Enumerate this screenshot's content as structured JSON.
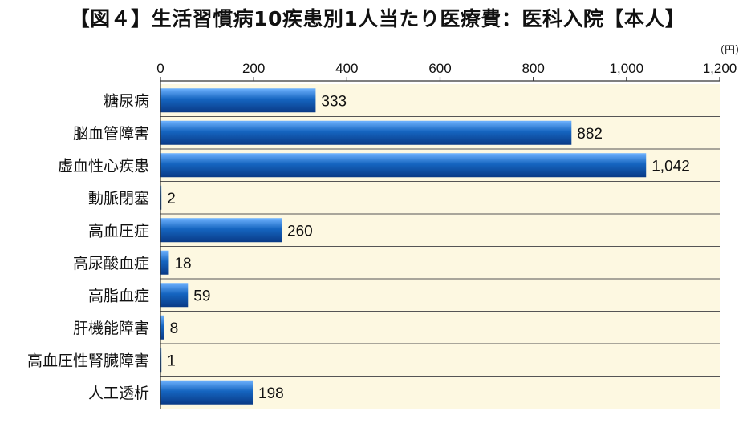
{
  "title": "【図４】生活習慣病10疾患別1人当たり医療費：医科入院【本人】",
  "unit": "（円）",
  "chart_data": {
    "type": "bar",
    "orientation": "horizontal",
    "title": "【図４】生活習慣病10疾患別1人当たり医療費：医科入院【本人】",
    "unit": "（円）",
    "categories": [
      "糖尿病",
      "脳血管障害",
      "虚血性心疾患",
      "動脈閉塞",
      "高血圧症",
      "高尿酸血症",
      "高脂血症",
      "肝機能障害",
      "高血圧性腎臓障害",
      "人工透析"
    ],
    "values": [
      333,
      882,
      1042,
      2,
      260,
      18,
      59,
      8,
      1,
      198
    ],
    "value_labels": [
      "333",
      "882",
      "1,042",
      "2",
      "260",
      "18",
      "59",
      "8",
      "1",
      "198"
    ],
    "xticks": [
      "0",
      "200",
      "400",
      "600",
      "800",
      "1,000",
      "1,200"
    ],
    "xlim": [
      0,
      1200
    ],
    "axis_position": "top",
    "grid": "horizontal row separators",
    "colors": {
      "bar": "#1565c0",
      "plot_background": "#fdf8e1"
    }
  }
}
